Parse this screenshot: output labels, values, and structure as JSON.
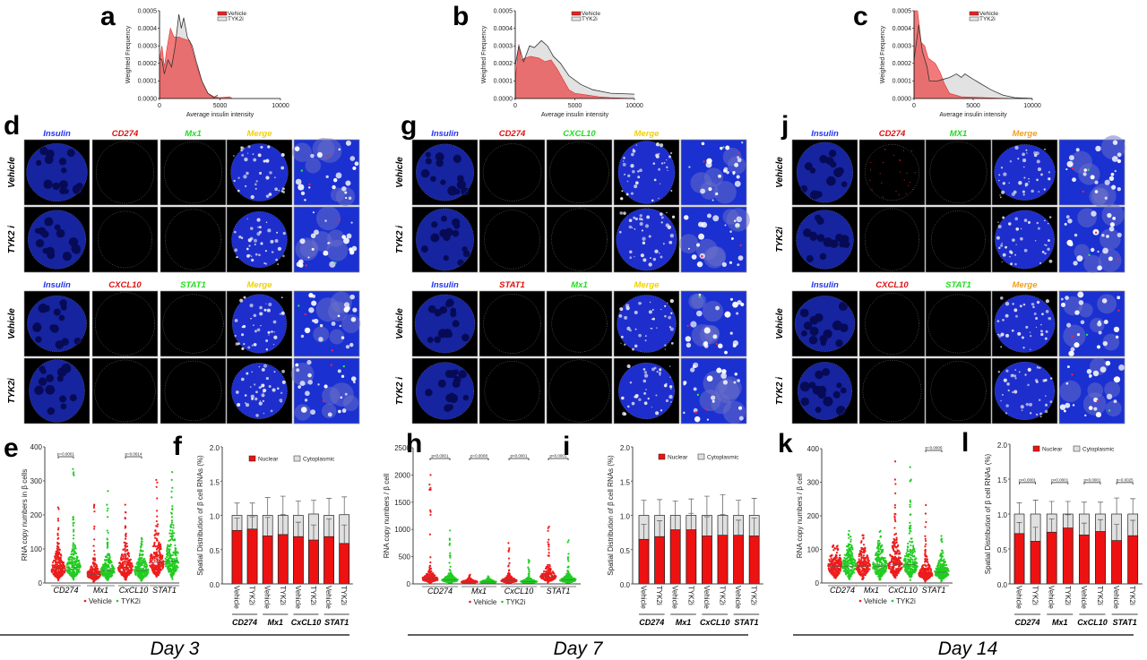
{
  "microscopy": [
    {
      "letter": "d",
      "blocks": [
        {
          "headers": [
            {
              "text": "Insulin",
              "color": "#2233ee"
            },
            {
              "text": "CD274",
              "color": "#e01010"
            },
            {
              "text": "Mx1",
              "color": "#22dd22"
            },
            {
              "text": "Merge",
              "color": "#f2d200"
            }
          ],
          "rows": [
            "Vehicle",
            "TYK2 i"
          ]
        },
        {
          "headers": [
            {
              "text": "Insulin",
              "color": "#2233ee"
            },
            {
              "text": "CXCL10",
              "color": "#e01010"
            },
            {
              "text": "STAT1",
              "color": "#22dd22"
            },
            {
              "text": "Merge",
              "color": "#f2d200"
            }
          ],
          "rows": [
            "Vehicle",
            "TYK2i"
          ]
        }
      ]
    },
    {
      "letter": "g",
      "blocks": [
        {
          "headers": [
            {
              "text": "Insulin",
              "color": "#2233ee"
            },
            {
              "text": "CD274",
              "color": "#e01010"
            },
            {
              "text": "CXCL10",
              "color": "#22dd22"
            },
            {
              "text": "Merge",
              "color": "#f2d200"
            }
          ],
          "rows": [
            "Vehicle",
            "TYK2 i"
          ]
        },
        {
          "headers": [
            {
              "text": "Insulin",
              "color": "#2233ee"
            },
            {
              "text": "STAT1",
              "color": "#e01010"
            },
            {
              "text": "Mx1",
              "color": "#22dd22"
            },
            {
              "text": "Merge",
              "color": "#f2d200"
            }
          ],
          "rows": [
            "Vehicle",
            "TYK2 i"
          ]
        }
      ]
    },
    {
      "letter": "j",
      "blocks": [
        {
          "headers": [
            {
              "text": "Insulin",
              "color": "#2233ee"
            },
            {
              "text": "CD274",
              "color": "#e01010"
            },
            {
              "text": "MX1",
              "color": "#22dd22"
            },
            {
              "text": "Merge",
              "color": "#f0a020"
            }
          ],
          "rows": [
            "Vehicle",
            "TYK2i"
          ]
        },
        {
          "headers": [
            {
              "text": "Insulin",
              "color": "#2233ee"
            },
            {
              "text": "CXCL10",
              "color": "#e01010"
            },
            {
              "text": "STAT1",
              "color": "#22dd22"
            },
            {
              "text": "Merge",
              "color": "#f0a020"
            }
          ],
          "rows": [
            "Vehicle",
            "TYK2 i"
          ]
        }
      ]
    }
  ],
  "days": [
    "Day 3",
    "Day 7",
    "Day 14"
  ],
  "colors": {
    "vehicle": "#ee1c1c",
    "tyk2i": "#22cc22",
    "tyk2i_hist": "#e2e2e2",
    "cytoplasmic": "#e0e0e0",
    "nuclear": "#ee1111"
  },
  "chart_data": [
    {
      "letter": "a",
      "type": "area",
      "xlabel": "Average insulin intensity",
      "ylabel": "Weighted  Frequency",
      "xlim": [
        0,
        10000
      ],
      "ylim": [
        0,
        0.0005
      ],
      "xticks": [
        "0",
        "5000",
        "10000"
      ],
      "yticks": [
        "0.0000",
        "0.0001",
        "0.0002",
        "0.0003",
        "0.0004",
        "0.0005"
      ],
      "legend": "top-right",
      "series": [
        {
          "name": "Vehicle",
          "x": [
            0,
            200,
            400,
            600,
            900,
            1200,
            1600,
            2000,
            2500,
            3000,
            3500,
            4000,
            4500,
            5000,
            5800,
            6000
          ],
          "y": [
            0.00022,
            0.0003,
            0.00018,
            0.00028,
            0.0004,
            0.00035,
            0.00035,
            0.00034,
            0.00033,
            0.0002,
            0.0001,
            3e-05,
            1e-05,
            5e-06,
            1e-05,
            0
          ]
        },
        {
          "name": "TYK2i",
          "x": [
            0,
            200,
            400,
            700,
            1000,
            1300,
            1600,
            1800,
            2000,
            2300,
            2700,
            3000,
            3500,
            4000,
            4500,
            4800
          ],
          "y": [
            0.00023,
            0.00022,
            0.00014,
            0.00022,
            0.00018,
            0.0003,
            0.00048,
            0.0004,
            0.00046,
            0.00035,
            0.0003,
            0.00022,
            0.0001,
            3e-05,
            5e-06,
            2e-05
          ]
        }
      ]
    },
    {
      "letter": "b",
      "type": "area",
      "xlabel": "Average insulin intensity",
      "ylabel": "Weighted  Frequency",
      "xlim": [
        0,
        10000
      ],
      "ylim": [
        0,
        0.0005
      ],
      "xticks": [
        "0",
        "5000",
        "10000"
      ],
      "yticks": [
        "0.0000",
        "0.0001",
        "0.0002",
        "0.0003",
        "0.0004",
        "0.0005"
      ],
      "legend": "top-right",
      "series": [
        {
          "name": "Vehicle",
          "x": [
            0,
            300,
            500,
            800,
            1300,
            2000,
            2500,
            3000,
            3500,
            4000,
            4500,
            5000,
            6000,
            7000,
            8000,
            10000
          ],
          "y": [
            0.0001,
            0.00031,
            0.00022,
            0.00023,
            0.00024,
            0.00023,
            0.00021,
            0.00022,
            0.00017,
            0.00011,
            5e-05,
            3e-05,
            2e-05,
            1e-05,
            5e-06,
            0
          ]
        },
        {
          "name": "TYK2i",
          "x": [
            0,
            300,
            700,
            1200,
            1600,
            2200,
            2700,
            3200,
            3800,
            4500,
            5500,
            6500,
            8000,
            10000
          ],
          "y": [
            0.00019,
            0.0003,
            0.00021,
            0.0003,
            0.00029,
            0.00033,
            0.0003,
            0.00024,
            0.0002,
            0.00013,
            8e-05,
            5e-05,
            3e-05,
            2.5e-05
          ]
        }
      ]
    },
    {
      "letter": "c",
      "type": "area",
      "xlabel": "Average insulin intensity",
      "ylabel": "Weighted  Frequency",
      "xlim": [
        0,
        10000
      ],
      "ylim": [
        0,
        0.0005
      ],
      "xticks": [
        "0",
        "5000",
        "10000"
      ],
      "yticks": [
        "0.0000",
        "0.0001",
        "0.0002",
        "0.0003",
        "0.0004",
        "0.0005"
      ],
      "legend": "top-right",
      "series": [
        {
          "name": "Vehicle",
          "x": [
            0,
            300,
            600,
            900,
            1200,
            1800,
            2200,
            2600,
            3000,
            4000,
            6000,
            8000
          ],
          "y": [
            0.0005,
            0.0005,
            0.00032,
            0.0003,
            0.00023,
            0.0002,
            0.00015,
            8e-05,
            3e-05,
            1e-05,
            5e-06,
            0
          ]
        },
        {
          "name": "TYK2i",
          "x": [
            0,
            400,
            700,
            1100,
            1300,
            2000,
            2500,
            3000,
            3600,
            4000,
            4300,
            5000,
            5500,
            6500,
            7500,
            8500,
            10000
          ],
          "y": [
            0.00022,
            0.00042,
            0.00027,
            0.00018,
            0.0001,
            0.0001,
            0.00011,
            0.00012,
            0.00014,
            0.00012,
            0.00014,
            0.00011,
            9e-05,
            5e-05,
            2e-05,
            5e-06,
            0
          ]
        }
      ]
    },
    {
      "letter": "e",
      "type": "scatter",
      "ylabel": "RNA copy numbers in β cells",
      "ylim": [
        0,
        400
      ],
      "yticks": [
        "0",
        "100",
        "200",
        "300",
        "400"
      ],
      "legend": [
        "Vehicle",
        "TYK2i"
      ],
      "groups": [
        "CD274",
        "Mx1",
        "CxCL10",
        "STAT1"
      ],
      "vehicle": {
        "median": [
          40,
          25,
          45,
          60
        ],
        "max": [
          222,
          230,
          230,
          303
        ]
      },
      "tyk2i": {
        "median": [
          45,
          35,
          35,
          65
        ],
        "max": [
          335,
          270,
          132,
          326
        ]
      },
      "pvalues": [
        {
          "group": 0,
          "label": "p=0.0001"
        },
        {
          "group": 2,
          "label": "p=0.0014"
        }
      ]
    },
    {
      "letter": "f",
      "type": "bar",
      "ylabel": "Spatial Distribution of β cell RNAs (%)",
      "ylim": [
        0,
        2.0
      ],
      "yticks": [
        "0.0",
        "0.5",
        "1.0",
        "1.5",
        "2.0"
      ],
      "legend": [
        "Nuclear",
        "Cytoplasmic"
      ],
      "groups": [
        "CD274",
        "Mx1",
        "CxCL10",
        "STAT1"
      ],
      "bar_labels": [
        "Vehicle",
        "TYK2i",
        "Vehicle",
        "TYK2i",
        "Vehicle",
        "TYK2i",
        "Vehicle",
        "TYK2i"
      ],
      "nuclear": [
        0.78,
        0.8,
        0.7,
        0.72,
        0.69,
        0.64,
        0.69,
        0.59
      ],
      "nuclear_err": [
        0.96,
        0.98,
        0.97,
        1.01,
        0.9,
        0.86,
        0.95,
        0.86
      ],
      "total": [
        1.0,
        1.0,
        1.0,
        1.0,
        1.0,
        1.02,
        1.0,
        1.01
      ],
      "total_err": [
        1.18,
        1.18,
        1.26,
        1.28,
        1.21,
        1.22,
        1.25,
        1.27
      ],
      "pvalues": []
    },
    {
      "letter": "h",
      "type": "scatter",
      "ylabel": "RNA copy numbers / β cell",
      "ylim": [
        0,
        2500
      ],
      "yticks": [
        "0",
        "500",
        "1000",
        "1500",
        "2000",
        "2500"
      ],
      "legend": [
        "Vehicle",
        "TYK2i"
      ],
      "groups": [
        "CD274",
        "Mx1",
        "CxCL10",
        "STAT1"
      ],
      "vehicle": {
        "median": [
          90,
          35,
          60,
          130
        ],
        "max": [
          2000,
          170,
          750,
          1050
        ]
      },
      "tyk2i": {
        "median": [
          70,
          35,
          40,
          70
        ],
        "max": [
          980,
          140,
          440,
          800
        ]
      },
      "pvalues": [
        {
          "group": 0,
          "label": "p<0.0001"
        },
        {
          "group": 1,
          "label": "p=0.0008"
        },
        {
          "group": 2,
          "label": "p<0.0001"
        },
        {
          "group": 3,
          "label": "p<0.0001"
        }
      ]
    },
    {
      "letter": "i",
      "type": "bar",
      "ylabel": "Spatial Distribution of β cell RNAs (%)",
      "ylim": [
        0,
        2.0
      ],
      "yticks": [
        "0.0",
        "0.5",
        "1.0",
        "1.5",
        "2.0"
      ],
      "legend": [
        "Nuclear",
        "Cytoplasmic"
      ],
      "groups": [
        "CD274",
        "Mx1",
        "CxCL10",
        "STAT1"
      ],
      "bar_labels": [
        "Vehicle",
        "TYK2i",
        "Vehicle",
        "TYK2i",
        "Vehicle",
        "TYK2i",
        "Vehicle",
        "TYK2i"
      ],
      "nuclear": [
        0.65,
        0.69,
        0.79,
        0.79,
        0.7,
        0.71,
        0.71,
        0.7
      ],
      "nuclear_err": [
        0.87,
        0.92,
        1.0,
        1.03,
        0.98,
        1.01,
        0.93,
        0.96
      ],
      "total": [
        1.0,
        1.0,
        1.0,
        1.0,
        1.0,
        1.0,
        1.0,
        1.0
      ],
      "total_err": [
        1.22,
        1.23,
        1.21,
        1.24,
        1.28,
        1.3,
        1.22,
        1.25
      ],
      "pvalues": []
    },
    {
      "letter": "k",
      "type": "scatter",
      "ylabel": "RNA copy numbers / β cell",
      "ylim": [
        0,
        400
      ],
      "yticks": [
        "0",
        "100",
        "200",
        "300",
        "400"
      ],
      "legend": [
        "Vehicle",
        "TYK2i"
      ],
      "groups": [
        "CD274",
        "Mx1",
        "CxCL10",
        "STAT1"
      ],
      "vehicle": {
        "median": [
          50,
          50,
          55,
          28
        ],
        "max": [
          112,
          142,
          362,
          232
        ]
      },
      "tyk2i": {
        "median": [
          50,
          50,
          55,
          32
        ],
        "max": [
          155,
          155,
          345,
          140
        ]
      },
      "pvalues": [
        {
          "group": 3,
          "label": "p=0.0006"
        }
      ]
    },
    {
      "letter": "l",
      "type": "bar",
      "ylabel": "Spatial Distribution of β cell RNAs (%)",
      "ylim": [
        0,
        2.0
      ],
      "yticks": [
        "0.0",
        "0.5",
        "1.0",
        "1.5",
        "2.0"
      ],
      "legend": [
        "Nuclear",
        "Cytoplasmic"
      ],
      "groups": [
        "CD274",
        "Mx1",
        "CxCL10",
        "STAT1"
      ],
      "bar_labels": [
        "Vehicle",
        "TYK2i",
        "Vehicle",
        "TYK2i",
        "Vehicle",
        "TYK2i",
        "Vehicle",
        "TYK2i"
      ],
      "nuclear": [
        0.72,
        0.61,
        0.74,
        0.8,
        0.7,
        0.75,
        0.62,
        0.69
      ],
      "nuclear_err": [
        0.88,
        0.81,
        0.93,
        0.99,
        0.87,
        0.92,
        0.85,
        0.91
      ],
      "total": [
        1.0,
        1.0,
        1.0,
        1.0,
        1.0,
        1.0,
        1.0,
        1.0
      ],
      "total_err": [
        1.16,
        1.2,
        1.18,
        1.18,
        1.17,
        1.17,
        1.23,
        1.22
      ],
      "pvalues": [
        {
          "group": 0,
          "label": "p<0.0001"
        },
        {
          "group": 1,
          "label": "p<0.0001"
        },
        {
          "group": 2,
          "label": "p<0.0001"
        },
        {
          "group": 3,
          "label": "p=0.0025"
        }
      ]
    }
  ]
}
